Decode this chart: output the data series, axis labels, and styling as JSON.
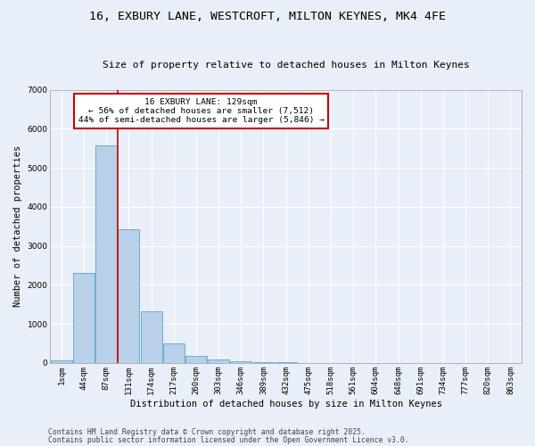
{
  "title_line1": "16, EXBURY LANE, WESTCROFT, MILTON KEYNES, MK4 4FE",
  "title_line2": "Size of property relative to detached houses in Milton Keynes",
  "xlabel": "Distribution of detached houses by size in Milton Keynes",
  "ylabel": "Number of detached properties",
  "categories": [
    "1sqm",
    "44sqm",
    "87sqm",
    "131sqm",
    "174sqm",
    "217sqm",
    "260sqm",
    "303sqm",
    "346sqm",
    "389sqm",
    "432sqm",
    "475sqm",
    "518sqm",
    "561sqm",
    "604sqm",
    "648sqm",
    "691sqm",
    "734sqm",
    "777sqm",
    "820sqm",
    "863sqm"
  ],
  "values": [
    70,
    2300,
    5580,
    3430,
    1320,
    490,
    190,
    90,
    55,
    20,
    10,
    5,
    0,
    0,
    0,
    0,
    0,
    0,
    0,
    0,
    0
  ],
  "bar_color": "#b8d0e8",
  "bar_edge_color": "#6aadd5",
  "background_color": "#e8eff8",
  "grid_color": "#ffffff",
  "vline_index": 2.5,
  "vline_color": "#cc0000",
  "annotation_text": "16 EXBURY LANE: 129sqm\n← 56% of detached houses are smaller (7,512)\n44% of semi-detached houses are larger (5,846) →",
  "annotation_box_color": "#cc0000",
  "ylim": [
    0,
    7000
  ],
  "yticks": [
    0,
    1000,
    2000,
    3000,
    4000,
    5000,
    6000,
    7000
  ],
  "footer_line1": "Contains HM Land Registry data © Crown copyright and database right 2025.",
  "footer_line2": "Contains public sector information licensed under the Open Government Licence v3.0.",
  "title_fontsize": 9.5,
  "subtitle_fontsize": 8,
  "axis_label_fontsize": 7.5,
  "tick_fontsize": 6.5,
  "annotation_fontsize": 6.8,
  "footer_fontsize": 5.8
}
